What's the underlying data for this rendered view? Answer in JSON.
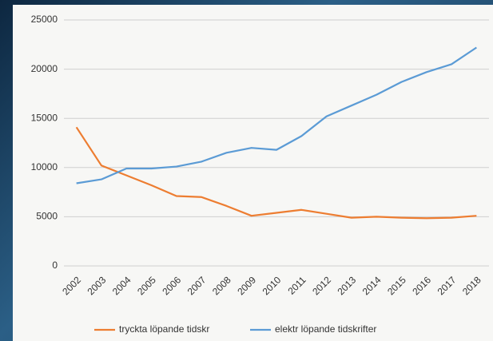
{
  "chart_data": {
    "type": "line",
    "categories": [
      "2002",
      "2003",
      "2004",
      "2005",
      "2006",
      "2007",
      "2008",
      "2009",
      "2010",
      "2011",
      "2012",
      "2013",
      "2014",
      "2015",
      "2016",
      "2017",
      "2018"
    ],
    "series": [
      {
        "name": "tryckta löpande tidskr",
        "color": "#ed7d31",
        "values": [
          14100,
          10200,
          9200,
          8200,
          7100,
          7000,
          6100,
          5100,
          5400,
          5700,
          5300,
          4900,
          5000,
          4900,
          4850,
          4900,
          5100
        ]
      },
      {
        "name": "elektr löpande tidskrifter",
        "color": "#5b9bd5",
        "values": [
          8400,
          8800,
          9900,
          9900,
          10100,
          10600,
          11500,
          12000,
          11800,
          13200,
          15200,
          16300,
          17400,
          18700,
          19700,
          20500,
          22200
        ]
      }
    ],
    "ylim": [
      0,
      25000
    ],
    "yticks": [
      0,
      5000,
      10000,
      15000,
      20000,
      25000
    ],
    "grid": true,
    "legend": "bottom"
  }
}
